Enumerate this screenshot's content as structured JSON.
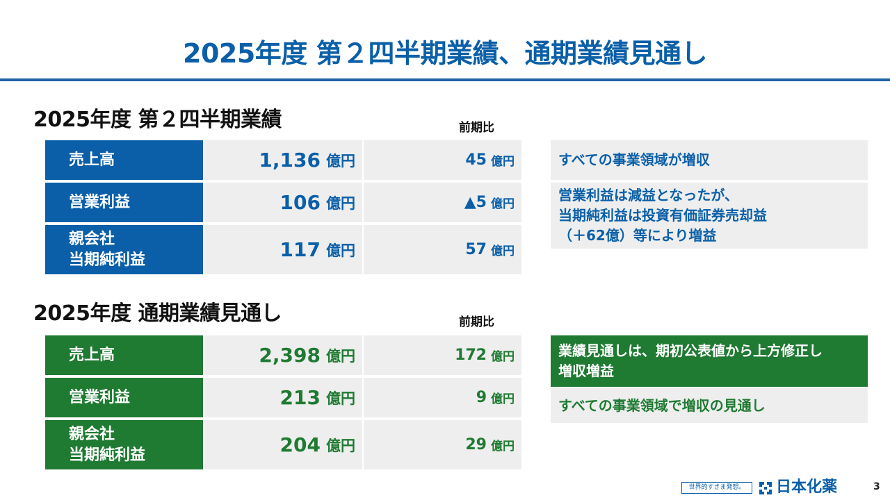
{
  "title": "2025年度 第２四半期業績、通期業績見通し",
  "colors": {
    "brand_blue": "#0a5fa8",
    "brand_green": "#1f7a32",
    "cell_grey": "#eeeeee"
  },
  "q2": {
    "heading": "2025年度 第２四半期業績",
    "yoy_heading": "前期比",
    "rows": [
      {
        "label1": "売上高",
        "label2": "",
        "value": "1,136",
        "unit": "億円",
        "yoy": "45",
        "yoy_unit": "億円"
      },
      {
        "label1": "営業利益",
        "label2": "",
        "value": "106",
        "unit": "億円",
        "yoy": "▲5",
        "yoy_unit": "億円"
      },
      {
        "label1": "親会社",
        "label2": "当期純利益",
        "value": "117",
        "unit": "億円",
        "yoy": "57",
        "yoy_unit": "億円"
      }
    ],
    "notes": [
      {
        "lines": [
          "すべての事業領域が増収"
        ]
      },
      {
        "lines": [
          "営業利益は減益となったが、",
          "当期純利益は投資有価証券売却益",
          "（＋62億）等により増益"
        ]
      }
    ]
  },
  "fy": {
    "heading": "2025年度 通期業績見通し",
    "yoy_heading": "前期比",
    "rows": [
      {
        "label1": "売上高",
        "label2": "",
        "value": "2,398",
        "unit": "億円",
        "yoy": "172",
        "yoy_unit": "億円"
      },
      {
        "label1": "営業利益",
        "label2": "",
        "value": "213",
        "unit": "億円",
        "yoy": "9",
        "yoy_unit": "億円"
      },
      {
        "label1": "親会社",
        "label2": "当期純利益",
        "value": "204",
        "unit": "億円",
        "yoy": "29",
        "yoy_unit": "億円"
      }
    ],
    "notes": [
      {
        "lines": [
          "業績見通しは、期初公表値から上方修正し",
          "増収増益"
        ]
      },
      {
        "lines": [
          "すべての事業領域で増収の見通し"
        ]
      }
    ]
  },
  "footer": {
    "tagline": "世界的すきま発想。",
    "logo_text": "日本化薬",
    "logo_icon": "nippon-kayaku-logo-icon",
    "page_number": "3"
  }
}
